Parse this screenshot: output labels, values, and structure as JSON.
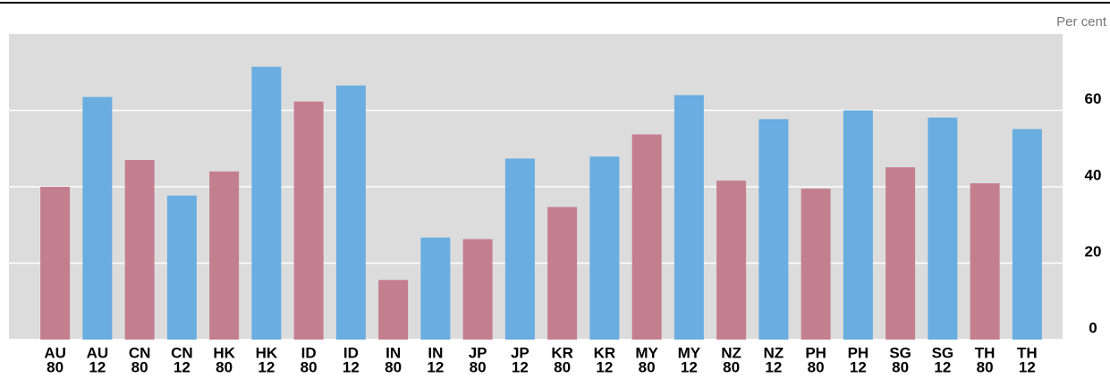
{
  "chart_data": {
    "type": "bar",
    "unit_label": "Per cent",
    "categories": [
      [
        "AU",
        "80"
      ],
      [
        "AU",
        "12"
      ],
      [
        "CN",
        "80"
      ],
      [
        "CN",
        "12"
      ],
      [
        "HK",
        "80"
      ],
      [
        "HK",
        "12"
      ],
      [
        "ID",
        "80"
      ],
      [
        "ID",
        "12"
      ],
      [
        "IN",
        "80"
      ],
      [
        "IN",
        "12"
      ],
      [
        "JP",
        "80"
      ],
      [
        "JP",
        "12"
      ],
      [
        "KR",
        "80"
      ],
      [
        "KR",
        "12"
      ],
      [
        "MY",
        "80"
      ],
      [
        "MY",
        "12"
      ],
      [
        "NZ",
        "80"
      ],
      [
        "NZ",
        "12"
      ],
      [
        "PH",
        "80"
      ],
      [
        "PH",
        "12"
      ],
      [
        "SG",
        "80"
      ],
      [
        "SG",
        "12"
      ],
      [
        "TH",
        "80"
      ],
      [
        "TH",
        "12"
      ]
    ],
    "values": [
      40,
      63.5,
      47,
      37.7,
      44,
      71.4,
      62.3,
      66.5,
      15.6,
      26.7,
      26.3,
      47.4,
      34.7,
      47.9,
      53.7,
      64,
      41.6,
      57.7,
      39.5,
      60,
      45.1,
      58.1,
      40.9,
      55.1
    ],
    "colors": [
      "#c47f8f",
      "#6aade0",
      "#c47f8f",
      "#6aade0",
      "#c47f8f",
      "#6aade0",
      "#c47f8f",
      "#6aade0",
      "#c47f8f",
      "#6aade0",
      "#c47f8f",
      "#6aade0",
      "#c47f8f",
      "#6aade0",
      "#c47f8f",
      "#6aade0",
      "#c47f8f",
      "#6aade0",
      "#c47f8f",
      "#6aade0",
      "#c47f8f",
      "#6aade0",
      "#c47f8f",
      "#6aade0"
    ],
    "ylim": [
      0,
      80
    ],
    "yticks": [
      0,
      20,
      40,
      60
    ],
    "grid": true
  }
}
